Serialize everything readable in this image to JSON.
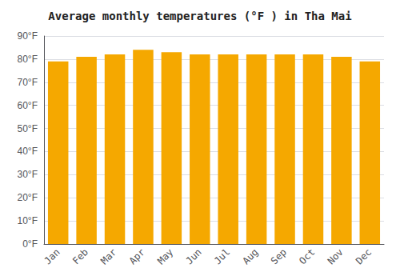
{
  "chart_data": {
    "type": "bar",
    "title": "Average monthly temperatures (°F ) in Tha Mai",
    "categories": [
      "Jan",
      "Feb",
      "Mar",
      "Apr",
      "May",
      "Jun",
      "Jul",
      "Aug",
      "Sep",
      "Oct",
      "Nov",
      "Dec"
    ],
    "values": [
      79,
      81,
      82,
      84,
      83,
      82,
      82,
      82,
      82,
      82,
      81,
      79
    ],
    "color": "#F5A800",
    "ylim": [
      0,
      90
    ],
    "yticks": [
      {
        "value": 0,
        "label": "0°F"
      },
      {
        "value": 10,
        "label": "10°F"
      },
      {
        "value": 20,
        "label": "20°F"
      },
      {
        "value": 30,
        "label": "30°F"
      },
      {
        "value": 40,
        "label": "40°F"
      },
      {
        "value": 50,
        "label": "50°F"
      },
      {
        "value": 60,
        "label": "60°F"
      },
      {
        "value": 70,
        "label": "70°F"
      },
      {
        "value": 80,
        "label": "80°F"
      },
      {
        "value": 90,
        "label": "90°F"
      }
    ],
    "grid": true
  }
}
